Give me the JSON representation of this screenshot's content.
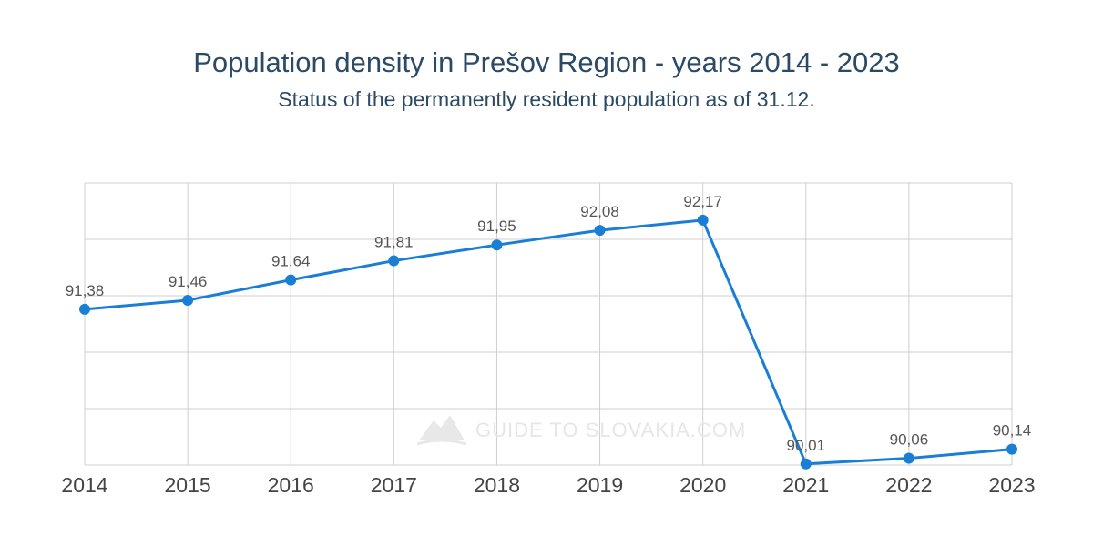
{
  "chart_data": {
    "type": "line",
    "title": "Population density in Prešov Region - years 2014 - 2023",
    "subtitle": "Status of the permanently resident population as of 31.12.",
    "categories": [
      "2014",
      "2015",
      "2016",
      "2017",
      "2018",
      "2019",
      "2020",
      "2021",
      "2022",
      "2023"
    ],
    "values": [
      91.38,
      91.46,
      91.64,
      91.81,
      91.95,
      92.08,
      92.17,
      90.01,
      90.06,
      90.14
    ],
    "data_labels": [
      "91,38",
      "91,46",
      "91,64",
      "91,81",
      "91,95",
      "92,08",
      "92,17",
      "90,01",
      "90,06",
      "90,14"
    ],
    "ylim": [
      90.0,
      92.5
    ],
    "y_grid_step": 0.5,
    "grid": true,
    "legend": "none",
    "color": "#1a7fd4",
    "watermark": "GUIDE TO SLOVAKIA.COM"
  }
}
